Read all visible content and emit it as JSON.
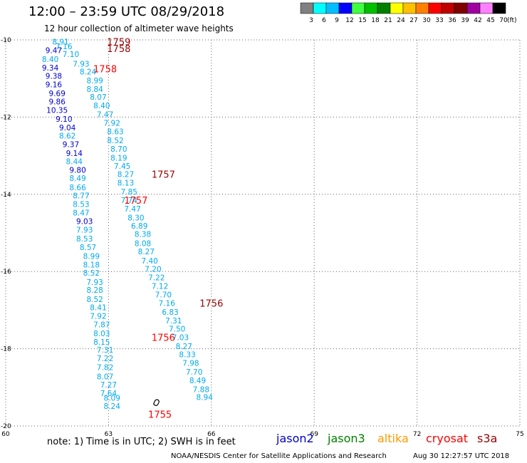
{
  "header": {
    "title": "12:00 – 23:59 UTC 08/29/2018",
    "subtitle": "12 hour collection of altimeter wave heights"
  },
  "color_scale": {
    "labels": [
      "3",
      "6",
      "9",
      "12",
      "15",
      "18",
      "21",
      "24",
      "27",
      "30",
      "33",
      "36",
      "39",
      "42",
      "45",
      "70"
    ],
    "unit": "(ft)",
    "colors": [
      "#808080",
      "#00ffff",
      "#00bfff",
      "#0000ff",
      "#40ff40",
      "#00c000",
      "#008000",
      "#ffff00",
      "#ffc000",
      "#ff8000",
      "#ff0000",
      "#c00000",
      "#800000",
      "#a000a0",
      "#ff80ff",
      "#000000"
    ]
  },
  "footer": {
    "note": "note: 1) Time is in UTC; 2) SWH is in feet",
    "credit": "NOAA/NESDIS Center for Satellite Applications and Research",
    "timestamp": "Aug 30 12:27:57 UTC 2018"
  },
  "satellites": [
    {
      "name": "jason2",
      "color": "#0000cc"
    },
    {
      "name": "jason3",
      "color": "#008000"
    },
    {
      "name": "altika",
      "color": "#ff9900"
    },
    {
      "name": "cryosat",
      "color": "#ff0000"
    },
    {
      "name": "s3a",
      "color": "#990000"
    }
  ],
  "chart_data": {
    "type": "scatter",
    "xlim": [
      60,
      75
    ],
    "ylim": [
      -20,
      -10
    ],
    "x_ticks": [
      "60",
      "63",
      "66",
      "69",
      "72",
      "75"
    ],
    "y_ticks": [
      "-10",
      "-12",
      "-14",
      "-16",
      "-18",
      "-20"
    ],
    "colors": {
      "light": "#00aaee",
      "dark": "#0000cc",
      "maroon": "#990000",
      "red": "#ff0000"
    },
    "points": [
      {
        "x": 61.6,
        "y": -10.05,
        "v": "8.91",
        "c": "light"
      },
      {
        "x": 61.7,
        "y": -10.17,
        "v": "7.16",
        "c": "light"
      },
      {
        "x": 61.4,
        "y": -10.27,
        "v": "9.47",
        "c": "dark"
      },
      {
        "x": 61.9,
        "y": -10.37,
        "v": "7.10",
        "c": "light"
      },
      {
        "x": 61.3,
        "y": -10.5,
        "v": "8.40",
        "c": "light"
      },
      {
        "x": 62.2,
        "y": -10.62,
        "v": "7.93",
        "c": "light"
      },
      {
        "x": 61.3,
        "y": -10.72,
        "v": "9.34",
        "c": "dark"
      },
      {
        "x": 62.4,
        "y": -10.82,
        "v": "8.24",
        "c": "light"
      },
      {
        "x": 61.4,
        "y": -10.93,
        "v": "9.38",
        "c": "dark"
      },
      {
        "x": 62.6,
        "y": -11.05,
        "v": "8.99",
        "c": "light"
      },
      {
        "x": 61.4,
        "y": -11.15,
        "v": "9.16",
        "c": "dark"
      },
      {
        "x": 62.6,
        "y": -11.27,
        "v": "8.84",
        "c": "light"
      },
      {
        "x": 61.5,
        "y": -11.38,
        "v": "9.69",
        "c": "dark"
      },
      {
        "x": 62.7,
        "y": -11.48,
        "v": "8.07",
        "c": "light"
      },
      {
        "x": 61.5,
        "y": -11.6,
        "v": "9.86",
        "c": "dark"
      },
      {
        "x": 62.8,
        "y": -11.7,
        "v": "8.40",
        "c": "light"
      },
      {
        "x": 61.5,
        "y": -11.82,
        "v": "10.35",
        "c": "dark"
      },
      {
        "x": 62.9,
        "y": -11.93,
        "v": "7.47",
        "c": "light"
      },
      {
        "x": 61.7,
        "y": -12.05,
        "v": "9.10",
        "c": "dark"
      },
      {
        "x": 63.1,
        "y": -12.15,
        "v": "7.92",
        "c": "light"
      },
      {
        "x": 61.8,
        "y": -12.27,
        "v": "9.04",
        "c": "dark"
      },
      {
        "x": 63.2,
        "y": -12.37,
        "v": "8.63",
        "c": "light"
      },
      {
        "x": 61.8,
        "y": -12.48,
        "v": "8.62",
        "c": "light"
      },
      {
        "x": 63.2,
        "y": -12.6,
        "v": "8.52",
        "c": "light"
      },
      {
        "x": 61.9,
        "y": -12.7,
        "v": "9.37",
        "c": "dark"
      },
      {
        "x": 63.3,
        "y": -12.82,
        "v": "8.70",
        "c": "light"
      },
      {
        "x": 62.0,
        "y": -12.93,
        "v": "9.14",
        "c": "dark"
      },
      {
        "x": 63.3,
        "y": -13.05,
        "v": "8.19",
        "c": "light"
      },
      {
        "x": 62.0,
        "y": -13.15,
        "v": "8.44",
        "c": "light"
      },
      {
        "x": 63.4,
        "y": -13.27,
        "v": "7.45",
        "c": "light"
      },
      {
        "x": 62.1,
        "y": -13.37,
        "v": "9.80",
        "c": "dark"
      },
      {
        "x": 63.5,
        "y": -13.48,
        "v": "8.27",
        "c": "light"
      },
      {
        "x": 62.1,
        "y": -13.58,
        "v": "8.49",
        "c": "light"
      },
      {
        "x": 63.5,
        "y": -13.7,
        "v": "8.13",
        "c": "light"
      },
      {
        "x": 62.1,
        "y": -13.82,
        "v": "8.66",
        "c": "light"
      },
      {
        "x": 63.6,
        "y": -13.93,
        "v": "7.85",
        "c": "light"
      },
      {
        "x": 62.2,
        "y": -14.03,
        "v": "8.77",
        "c": "light"
      },
      {
        "x": 63.6,
        "y": -14.15,
        "v": "7.74",
        "c": "light"
      },
      {
        "x": 62.2,
        "y": -14.25,
        "v": "8.53",
        "c": "light"
      },
      {
        "x": 63.7,
        "y": -14.37,
        "v": "7.47",
        "c": "light"
      },
      {
        "x": 62.2,
        "y": -14.47,
        "v": "8.47",
        "c": "light"
      },
      {
        "x": 63.8,
        "y": -14.6,
        "v": "8.30",
        "c": "light"
      },
      {
        "x": 62.3,
        "y": -14.7,
        "v": "9.03",
        "c": "dark"
      },
      {
        "x": 63.9,
        "y": -14.82,
        "v": "6.89",
        "c": "light"
      },
      {
        "x": 62.3,
        "y": -14.92,
        "v": "7.93",
        "c": "light"
      },
      {
        "x": 64.0,
        "y": -15.03,
        "v": "8.38",
        "c": "light"
      },
      {
        "x": 62.3,
        "y": -15.15,
        "v": "8.53",
        "c": "light"
      },
      {
        "x": 64.0,
        "y": -15.27,
        "v": "8.08",
        "c": "light"
      },
      {
        "x": 62.4,
        "y": -15.37,
        "v": "8.57",
        "c": "light"
      },
      {
        "x": 64.1,
        "y": -15.48,
        "v": "8.27",
        "c": "light"
      },
      {
        "x": 62.5,
        "y": -15.6,
        "v": "8.99",
        "c": "light"
      },
      {
        "x": 64.2,
        "y": -15.72,
        "v": "7.40",
        "c": "light"
      },
      {
        "x": 62.5,
        "y": -15.82,
        "v": "8.18",
        "c": "light"
      },
      {
        "x": 64.3,
        "y": -15.93,
        "v": "7.20",
        "c": "light"
      },
      {
        "x": 62.5,
        "y": -16.03,
        "v": "8.52",
        "c": "light"
      },
      {
        "x": 64.4,
        "y": -16.15,
        "v": "7.22",
        "c": "light"
      },
      {
        "x": 62.6,
        "y": -16.27,
        "v": "7.93",
        "c": "light"
      },
      {
        "x": 64.5,
        "y": -16.37,
        "v": "7.12",
        "c": "light"
      },
      {
        "x": 62.6,
        "y": -16.48,
        "v": "8.28",
        "c": "light"
      },
      {
        "x": 64.6,
        "y": -16.6,
        "v": "7.70",
        "c": "light"
      },
      {
        "x": 62.6,
        "y": -16.72,
        "v": "8.52",
        "c": "light"
      },
      {
        "x": 64.7,
        "y": -16.82,
        "v": "7.16",
        "c": "light"
      },
      {
        "x": 62.7,
        "y": -16.93,
        "v": "8.41",
        "c": "light"
      },
      {
        "x": 64.8,
        "y": -17.05,
        "v": "6.83",
        "c": "light"
      },
      {
        "x": 62.7,
        "y": -17.15,
        "v": "7.92",
        "c": "light"
      },
      {
        "x": 64.9,
        "y": -17.27,
        "v": "7.31",
        "c": "light"
      },
      {
        "x": 62.8,
        "y": -17.37,
        "v": "7.87",
        "c": "light"
      },
      {
        "x": 65.0,
        "y": -17.48,
        "v": "7.50",
        "c": "light"
      },
      {
        "x": 62.8,
        "y": -17.6,
        "v": "8.03",
        "c": "light"
      },
      {
        "x": 65.1,
        "y": -17.7,
        "v": "7.03",
        "c": "light"
      },
      {
        "x": 62.8,
        "y": -17.82,
        "v": "8.15",
        "c": "light"
      },
      {
        "x": 65.2,
        "y": -17.93,
        "v": "8.27",
        "c": "light"
      },
      {
        "x": 62.9,
        "y": -18.03,
        "v": "7.31",
        "c": "light"
      },
      {
        "x": 65.3,
        "y": -18.15,
        "v": "8.33",
        "c": "light"
      },
      {
        "x": 62.9,
        "y": -18.25,
        "v": "7.22",
        "c": "light"
      },
      {
        "x": 65.4,
        "y": -18.37,
        "v": "7.98",
        "c": "light"
      },
      {
        "x": 62.9,
        "y": -18.48,
        "v": "7.82",
        "c": "light"
      },
      {
        "x": 65.5,
        "y": -18.6,
        "v": "7.70",
        "c": "light"
      },
      {
        "x": 62.9,
        "y": -18.72,
        "v": "8.07",
        "c": "light"
      },
      {
        "x": 65.6,
        "y": -18.82,
        "v": "8.49",
        "c": "light"
      },
      {
        "x": 63.0,
        "y": -18.93,
        "v": "7.27",
        "c": "light"
      },
      {
        "x": 65.7,
        "y": -19.05,
        "v": "7.88",
        "c": "light"
      },
      {
        "x": 63.0,
        "y": -19.15,
        "v": "7.64",
        "c": "light"
      },
      {
        "x": 65.8,
        "y": -19.25,
        "v": "8.94",
        "c": "light"
      },
      {
        "x": 63.1,
        "y": -19.27,
        "v": "8.09",
        "c": "light"
      },
      {
        "x": 63.1,
        "y": -19.48,
        "v": "8.24",
        "c": "light"
      }
    ],
    "time_labels": [
      {
        "x": 63.3,
        "y": -10.05,
        "t": "1759",
        "c": "maroon"
      },
      {
        "x": 63.3,
        "y": -10.22,
        "t": "1758",
        "c": "maroon"
      },
      {
        "x": 62.9,
        "y": -10.75,
        "t": "1758",
        "c": "red"
      },
      {
        "x": 64.6,
        "y": -13.48,
        "t": "1757",
        "c": "maroon"
      },
      {
        "x": 63.8,
        "y": -14.15,
        "t": "1757",
        "c": "red"
      },
      {
        "x": 66.0,
        "y": -16.82,
        "t": "1756",
        "c": "maroon"
      },
      {
        "x": 64.6,
        "y": -17.7,
        "t": "1756",
        "c": "red"
      },
      {
        "x": 64.5,
        "y": -19.7,
        "t": "1755",
        "c": "red"
      }
    ],
    "marker": {
      "x": 64.4,
      "y": -19.38
    }
  }
}
